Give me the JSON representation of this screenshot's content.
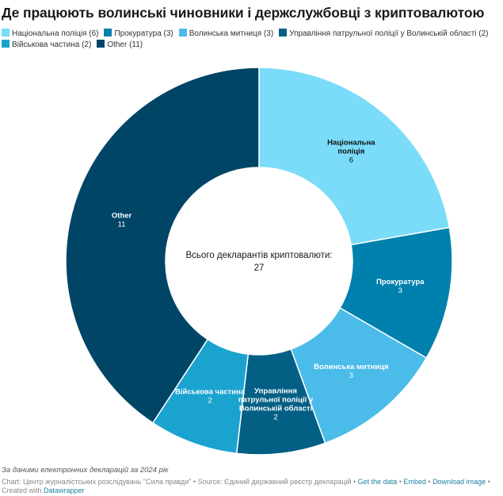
{
  "title": "Де працюють волинські чиновники і держслужбовці з криптовалютою",
  "chart_data": {
    "type": "pie",
    "donut": true,
    "title": "Де працюють волинські чиновники і держслужбовці з криптовалютою",
    "legend_position": "top",
    "categories": [
      "Національна поліція",
      "Прокуратура",
      "Волинська митниця",
      "Управління патрульної поліції у Волинській області",
      "Військова частина",
      "Other"
    ],
    "values": [
      6,
      3,
      3,
      2,
      2,
      11
    ],
    "colors": [
      "#7adcf8",
      "#0080ad",
      "#4bbce9",
      "#035f84",
      "#1ba3d0",
      "#014566"
    ],
    "legend": [
      "Національна поліція (6)",
      "Прокуратура (3)",
      "Волинська митниця (3)",
      "Управління патрульної поліції у Волинській області (2)",
      "Військова частина (2)",
      "Other (11)"
    ],
    "slice_labels": [
      [
        "Національна",
        "поліція",
        "6"
      ],
      [
        "Прокуратура",
        "3"
      ],
      [
        "Волинська митниця",
        "3"
      ],
      [
        "Управління",
        "патрульної поліції у",
        "Волинській області",
        "2"
      ],
      [
        "Військова частина",
        "2"
      ],
      [
        "Other",
        "11"
      ]
    ],
    "center_label": "Всього декларантів криптовалюти:",
    "center_value": "27"
  },
  "footer": {
    "note": "За даними електронних декларацій за 2024 рік",
    "credit_prefix": "Chart: Центр журналістських розслідувань \"Сила правди\" • Source: Єдиний державний реєстр декларацій • ",
    "get_data": "Get the data",
    "sep1": " • ",
    "embed": "Embed",
    "sep2": " • ",
    "download": "Download image",
    "created_with": " • Created with ",
    "datawrapper": "Datawrapper"
  }
}
